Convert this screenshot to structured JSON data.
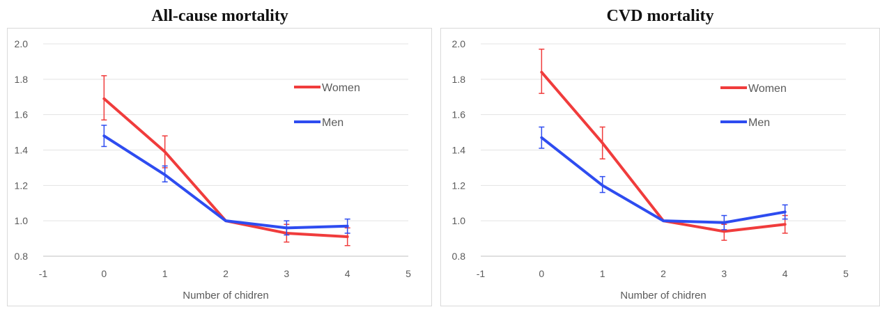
{
  "chart_data": [
    {
      "type": "line",
      "title": "All-cause mortality",
      "xlabel": "Number of chidren",
      "ylabel": "",
      "xlim": [
        -1,
        5
      ],
      "ylim": [
        0.8,
        2.0
      ],
      "x_ticks": [
        "-1",
        "0",
        "1",
        "2",
        "3",
        "4",
        "5"
      ],
      "y_ticks": [
        "0.8",
        "1.0",
        "1.2",
        "1.4",
        "1.6",
        "1.8",
        "2.0"
      ],
      "grid": true,
      "legend_position": "right",
      "series": [
        {
          "name": "Women",
          "color": "#f03c3c",
          "x": [
            0,
            1,
            2,
            3,
            4
          ],
          "y": [
            1.69,
            1.39,
            1.0,
            0.93,
            0.91
          ],
          "error_low": [
            1.57,
            1.3,
            1.0,
            0.88,
            0.86
          ],
          "error_high": [
            1.82,
            1.48,
            1.0,
            0.98,
            0.96
          ]
        },
        {
          "name": "Men",
          "color": "#2e4cf0",
          "x": [
            0,
            1,
            2,
            3,
            4
          ],
          "y": [
            1.48,
            1.26,
            1.0,
            0.96,
            0.97
          ],
          "error_low": [
            1.42,
            1.22,
            1.0,
            0.92,
            0.93
          ],
          "error_high": [
            1.54,
            1.31,
            1.0,
            1.0,
            1.01
          ]
        }
      ]
    },
    {
      "type": "line",
      "title": "CVD mortality",
      "xlabel": "Number of chidren",
      "ylabel": "",
      "xlim": [
        -1,
        5
      ],
      "ylim": [
        0.8,
        2.0
      ],
      "x_ticks": [
        "-1",
        "0",
        "1",
        "2",
        "3",
        "4",
        "5"
      ],
      "y_ticks": [
        "0.8",
        "1.0",
        "1.2",
        "1.4",
        "1.6",
        "1.8",
        "2.0"
      ],
      "grid": true,
      "legend_position": "right",
      "series": [
        {
          "name": "Women",
          "color": "#f03c3c",
          "x": [
            0,
            1,
            2,
            3,
            4
          ],
          "y": [
            1.84,
            1.44,
            1.0,
            0.94,
            0.98
          ],
          "error_low": [
            1.72,
            1.35,
            1.0,
            0.89,
            0.93
          ],
          "error_high": [
            1.97,
            1.53,
            1.0,
            0.98,
            1.03
          ]
        },
        {
          "name": "Men",
          "color": "#2e4cf0",
          "x": [
            0,
            1,
            2,
            3,
            4
          ],
          "y": [
            1.47,
            1.2,
            1.0,
            0.99,
            1.05
          ],
          "error_low": [
            1.41,
            1.16,
            1.0,
            0.95,
            1.01
          ],
          "error_high": [
            1.53,
            1.25,
            1.0,
            1.03,
            1.09
          ]
        }
      ]
    }
  ]
}
